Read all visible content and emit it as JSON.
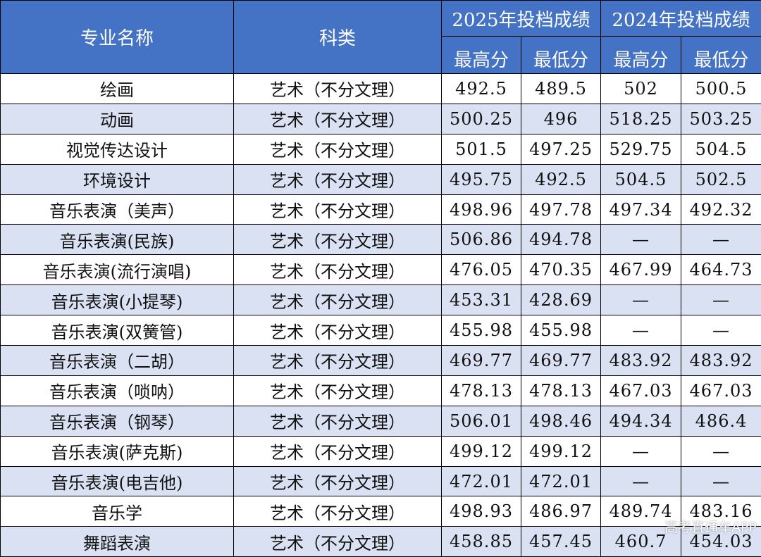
{
  "header": {
    "major_col": "专业名称",
    "category_col": "科类",
    "year_2025": "2025年投档成绩",
    "year_2024": "2024年投档成绩",
    "max_2025": "最高分",
    "min_2025": "最低分",
    "max_2024": "最高分",
    "min_2024": "最低分"
  },
  "rows": [
    {
      "major": "绘画",
      "category": "艺术（不分文理）",
      "max2025": "492.5",
      "min2025": "489.5",
      "max2024": "502",
      "min2024": "500.5"
    },
    {
      "major": "动画",
      "category": "艺术（不分文理）",
      "max2025": "500.25",
      "min2025": "496",
      "max2024": "518.25",
      "min2024": "503.25"
    },
    {
      "major": "视觉传达设计",
      "category": "艺术（不分文理）",
      "max2025": "501.5",
      "min2025": "497.25",
      "max2024": "529.75",
      "min2024": "504.5"
    },
    {
      "major": "环境设计",
      "category": "艺术（不分文理）",
      "max2025": "495.75",
      "min2025": "492.5",
      "max2024": "504.5",
      "min2024": "502.5"
    },
    {
      "major": "音乐表演（美声）",
      "category": "艺术（不分文理）",
      "max2025": "498.96",
      "min2025": "497.78",
      "max2024": "497.34",
      "min2024": "492.32"
    },
    {
      "major": "音乐表演(民族)",
      "category": "艺术（不分文理）",
      "max2025": "506.86",
      "min2025": "494.78",
      "max2024": "—",
      "min2024": "—"
    },
    {
      "major": "音乐表演(流行演唱)",
      "category": "艺术（不分文理）",
      "max2025": "476.05",
      "min2025": "470.35",
      "max2024": "467.99",
      "min2024": "464.73"
    },
    {
      "major": "音乐表演(小提琴)",
      "category": "艺术（不分文理）",
      "max2025": "453.31",
      "min2025": "428.69",
      "max2024": "—",
      "min2024": "—"
    },
    {
      "major": "音乐表演(双簧管)",
      "category": "艺术（不分文理）",
      "max2025": "455.98",
      "min2025": "455.98",
      "max2024": "—",
      "min2024": "—"
    },
    {
      "major": "音乐表演（二胡）",
      "category": "艺术（不分文理）",
      "max2025": "469.77",
      "min2025": "469.77",
      "max2024": "483.92",
      "min2024": "483.92"
    },
    {
      "major": "音乐表演（唢呐）",
      "category": "艺术（不分文理）",
      "max2025": "478.13",
      "min2025": "478.13",
      "max2024": "467.03",
      "min2024": "467.03"
    },
    {
      "major": "音乐表演（钢琴）",
      "category": "艺术（不分文理）",
      "max2025": "506.01",
      "min2025": "498.46",
      "max2024": "494.34",
      "min2024": "486.4"
    },
    {
      "major": "音乐表演(萨克斯)",
      "category": "艺术（不分文理）",
      "max2025": "499.12",
      "min2025": "499.12",
      "max2024": "—",
      "min2024": "—"
    },
    {
      "major": "音乐表演(电吉他)",
      "category": "艺术（不分文理）",
      "max2025": "472.01",
      "min2025": "472.01",
      "max2024": "—",
      "min2024": "—"
    },
    {
      "major": "音乐学",
      "category": "艺术（不分文理）",
      "max2025": "498.93",
      "min2025": "486.97",
      "max2024": "489.74",
      "min2024": "483.16"
    },
    {
      "major": "舞蹈表演",
      "category": "艺术（不分文理）",
      "max2025": "458.85",
      "min2025": "457.45",
      "max2024": "460.7",
      "min2024": "454.03"
    }
  ],
  "watermark": "高考直通车APP",
  "colors": {
    "header_bg": "#4472c4",
    "stripe_bg": "#d9e1f2",
    "row_bg": "#ffffff"
  }
}
